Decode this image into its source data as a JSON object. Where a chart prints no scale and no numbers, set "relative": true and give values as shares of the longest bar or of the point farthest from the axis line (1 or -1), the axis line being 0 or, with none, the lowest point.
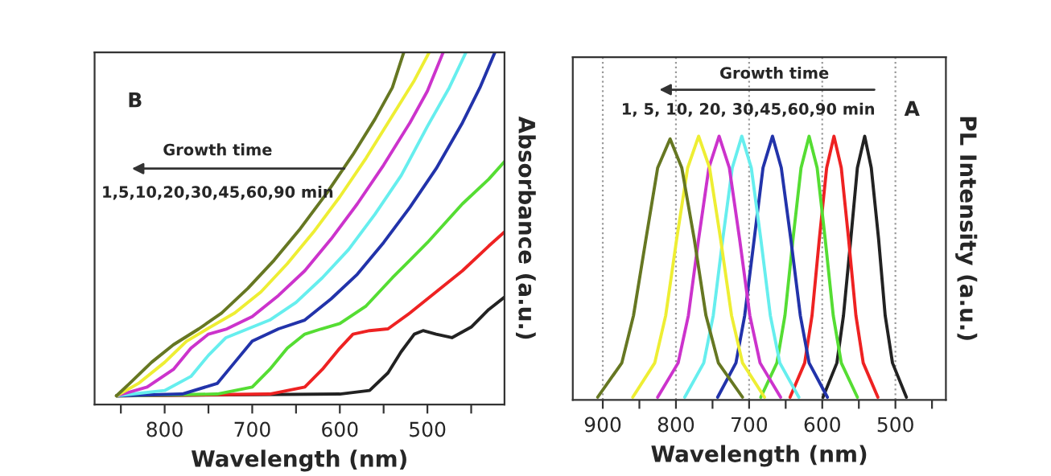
{
  "chart_data": [
    {
      "type": "line",
      "relative": true,
      "xlabel": "Wavelength (nm)",
      "ylabel": "Absorbance (a.u.)",
      "xlim": [
        880,
        412
      ],
      "xticks": [
        {
          "value": 850,
          "label": null
        },
        800,
        {
          "value": 750,
          "label": null
        },
        700,
        {
          "value": 650,
          "label": null
        },
        600,
        {
          "value": 550,
          "label": null
        },
        500,
        {
          "value": 450,
          "label": null
        }
      ],
      "tick_labels": "x",
      "grid": false,
      "annotations": [
        "B",
        "Growth time",
        "1,5,10,20,30,45,60,90 min"
      ],
      "series": [
        {
          "color": "#222222",
          "x": [
            855,
            600,
            566,
            545,
            530,
            515,
            505,
            490,
            472,
            450,
            430,
            412
          ],
          "values": [
            0.025,
            0.03,
            0.04,
            0.09,
            0.15,
            0.2,
            0.21,
            0.2,
            0.19,
            0.22,
            0.27,
            0.305
          ]
        },
        {
          "color": "#ee2222",
          "x": [
            855,
            680,
            640,
            620,
            600,
            585,
            566,
            545,
            520,
            490,
            460,
            430,
            412
          ],
          "values": [
            0.025,
            0.03,
            0.05,
            0.1,
            0.16,
            0.2,
            0.21,
            0.215,
            0.26,
            0.32,
            0.38,
            0.45,
            0.49
          ]
        },
        {
          "color": "#55dd33",
          "x": [
            855,
            740,
            700,
            680,
            660,
            640,
            621,
            600,
            570,
            540,
            500,
            460,
            430,
            412
          ],
          "values": [
            0.025,
            0.03,
            0.05,
            0.1,
            0.16,
            0.2,
            0.215,
            0.23,
            0.28,
            0.36,
            0.46,
            0.57,
            0.64,
            0.69
          ]
        },
        {
          "color": "#2233aa",
          "x": [
            855,
            780,
            740,
            720,
            700,
            670,
            640,
            610,
            580,
            550,
            520,
            490,
            460,
            440,
            423
          ],
          "values": [
            0.025,
            0.03,
            0.06,
            0.12,
            0.18,
            0.215,
            0.24,
            0.3,
            0.37,
            0.46,
            0.56,
            0.67,
            0.8,
            0.9,
            1.0
          ]
        },
        {
          "color": "#66eeee",
          "x": [
            855,
            800,
            770,
            750,
            730,
            705,
            680,
            650,
            620,
            590,
            560,
            530,
            500,
            475,
            456
          ],
          "values": [
            0.025,
            0.04,
            0.08,
            0.14,
            0.19,
            0.215,
            0.24,
            0.29,
            0.36,
            0.44,
            0.54,
            0.65,
            0.79,
            0.9,
            1.0
          ]
        },
        {
          "color": "#cc33cc",
          "x": [
            855,
            820,
            790,
            770,
            750,
            729,
            700,
            670,
            640,
            610,
            580,
            550,
            520,
            500,
            482
          ],
          "values": [
            0.025,
            0.05,
            0.1,
            0.16,
            0.2,
            0.215,
            0.25,
            0.31,
            0.38,
            0.47,
            0.57,
            0.68,
            0.8,
            0.89,
            1.0
          ]
        },
        {
          "color": "#eeee33",
          "x": [
            855,
            830,
            800,
            775,
            748,
            720,
            690,
            660,
            630,
            600,
            570,
            540,
            515,
            498
          ],
          "values": [
            0.025,
            0.06,
            0.12,
            0.18,
            0.22,
            0.26,
            0.32,
            0.4,
            0.49,
            0.59,
            0.7,
            0.82,
            0.92,
            1.0
          ]
        },
        {
          "color": "#667722",
          "x": [
            855,
            840,
            815,
            790,
            761,
            735,
            705,
            675,
            645,
            615,
            585,
            560,
            540,
            527
          ],
          "values": [
            0.025,
            0.06,
            0.12,
            0.17,
            0.215,
            0.26,
            0.33,
            0.41,
            0.5,
            0.6,
            0.71,
            0.81,
            0.9,
            1.0
          ]
        }
      ]
    },
    {
      "type": "line",
      "relative": true,
      "xlabel": "Wavelength (nm)",
      "ylabel": "PL Intensity (a.u.)",
      "xlim": [
        941,
        431
      ],
      "xticks": [
        900,
        {
          "value": 850,
          "label": null
        },
        800,
        {
          "value": 750,
          "label": null
        },
        700,
        {
          "value": 650,
          "label": null
        },
        600,
        {
          "value": 550,
          "label": null
        },
        500,
        {
          "value": 450,
          "label": null
        }
      ],
      "tick_labels": "x",
      "grid": "x",
      "annotations": [
        "A",
        "Growth time",
        "1, 5, 10, 20, 30,45,60,90 min"
      ],
      "series": [
        {
          "color": "#222222",
          "x": [
            485,
            504,
            514,
            523,
            533,
            542,
            552,
            561,
            571,
            580,
            599
          ],
          "values": [
            0.01,
            0.14,
            0.32,
            0.61,
            0.88,
            1,
            0.88,
            0.61,
            0.32,
            0.14,
            0.01
          ]
        },
        {
          "color": "#ee2222",
          "x": [
            524,
            544,
            554,
            564,
            574,
            584,
            594,
            604,
            614,
            624,
            644
          ],
          "values": [
            0.01,
            0.14,
            0.32,
            0.61,
            0.88,
            1,
            0.88,
            0.61,
            0.32,
            0.14,
            0.01
          ]
        },
        {
          "color": "#55dd33",
          "x": [
            552,
            574,
            585,
            596,
            607,
            618,
            629,
            640,
            651,
            662,
            684
          ],
          "values": [
            0.01,
            0.14,
            0.32,
            0.61,
            0.88,
            1,
            0.88,
            0.61,
            0.32,
            0.14,
            0.01
          ]
        },
        {
          "color": "#2233aa",
          "x": [
            593,
            618,
            630,
            643,
            656,
            668,
            681,
            693,
            706,
            718,
            743
          ],
          "values": [
            0.01,
            0.14,
            0.32,
            0.61,
            0.88,
            1,
            0.88,
            0.61,
            0.32,
            0.14,
            0.01
          ]
        },
        {
          "color": "#66eeee",
          "x": [
            632,
            658,
            671,
            684,
            697,
            710,
            723,
            736,
            749,
            762,
            788
          ],
          "values": [
            0.01,
            0.14,
            0.32,
            0.61,
            0.88,
            1,
            0.88,
            0.61,
            0.32,
            0.14,
            0.01
          ]
        },
        {
          "color": "#cc33cc",
          "x": [
            657,
            685,
            699,
            713,
            727,
            741,
            755,
            769,
            783,
            797,
            825
          ],
          "values": [
            0.01,
            0.14,
            0.32,
            0.61,
            0.88,
            1,
            0.88,
            0.61,
            0.32,
            0.14,
            0.01
          ]
        },
        {
          "color": "#eeee33",
          "x": [
            679,
            709,
            724,
            739,
            754,
            769,
            784,
            799,
            814,
            829,
            859
          ],
          "values": [
            0.01,
            0.14,
            0.32,
            0.61,
            0.88,
            1,
            0.88,
            0.61,
            0.32,
            0.14,
            0.01
          ]
        },
        {
          "color": "#667722",
          "x": [
            709,
            742,
            759,
            775,
            792,
            808,
            825,
            841,
            858,
            874,
            907
          ],
          "values": [
            0.01,
            0.14,
            0.32,
            0.61,
            0.88,
            0.99,
            0.88,
            0.61,
            0.32,
            0.14,
            0.01
          ]
        }
      ]
    }
  ]
}
